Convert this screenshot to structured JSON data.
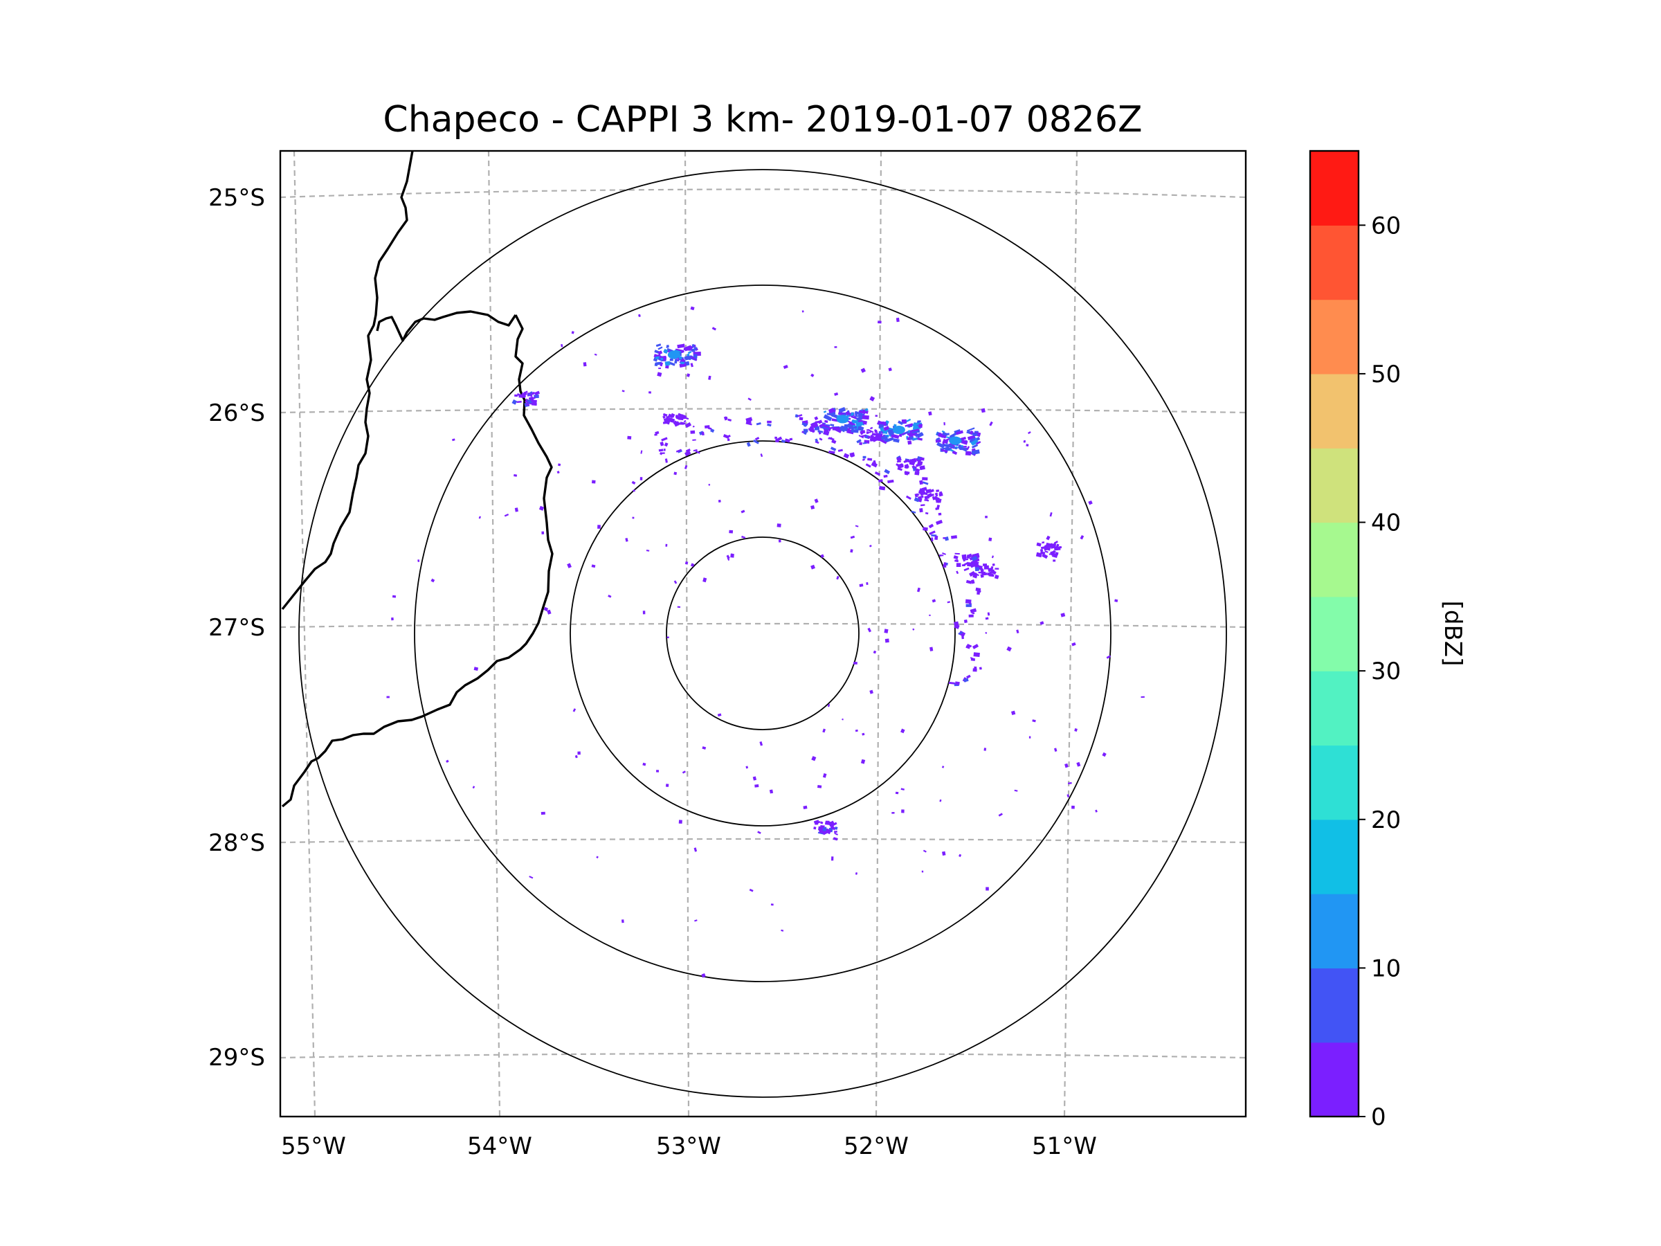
{
  "title": "Chapeco - CAPPI 3 km- 2019-01-07 0826Z",
  "map": {
    "lat_labels": [
      "25°S",
      "26°S",
      "27°S",
      "28°S",
      "29°S"
    ],
    "lon_labels": [
      "55°W",
      "54°W",
      "53°W",
      "52°W",
      "51°W"
    ],
    "lat_values": [
      -25,
      -26,
      -27,
      -28,
      -29
    ],
    "lon_values": [
      -55,
      -54,
      -53,
      -52,
      -51
    ],
    "extent": {
      "lon_min": -55.2,
      "lon_max": -50.05,
      "lat_min": -29.3,
      "lat_max": -24.8
    },
    "radar_center": {
      "lon": -52.6,
      "lat": -27.03
    },
    "range_rings": [
      "ring-1",
      "ring-2",
      "ring-3",
      "ring-4"
    ]
  },
  "colorbar": {
    "label": "[dBZ]",
    "tick_labels": [
      "0",
      "10",
      "20",
      "30",
      "40",
      "50",
      "60"
    ],
    "min": 0,
    "max": 65,
    "step": 5,
    "colors": [
      "#7b1fff",
      "#4254f5",
      "#2196f3",
      "#11bfe6",
      "#2ee0d5",
      "#52f2c2",
      "#83fcaa",
      "#a6f98f",
      "#cfe27c",
      "#f2c26e",
      "#ff8c4f",
      "#ff5533",
      "#ff1a14"
    ]
  },
  "chart_data": {
    "type": "radar-reflectivity-map",
    "title": "Chapeco - CAPPI 3 km- 2019-01-07 0826Z",
    "xlabel": "",
    "ylabel": "",
    "colorbar_label": "[dBZ]",
    "colorbar_range": [
      0,
      65
    ],
    "radar_site": {
      "lon": -52.6,
      "lat": -27.03
    },
    "echoes": [
      {
        "lon": -52.35,
        "lat": -26.08,
        "dbz": 8
      },
      {
        "lon": -52.2,
        "lat": -26.05,
        "dbz": 12
      },
      {
        "lon": -52.05,
        "lat": -26.12,
        "dbz": 6
      },
      {
        "lon": -51.9,
        "lat": -26.1,
        "dbz": 14
      },
      {
        "lon": -51.85,
        "lat": -26.25,
        "dbz": 6
      },
      {
        "lon": -51.75,
        "lat": -26.4,
        "dbz": 4
      },
      {
        "lon": -51.55,
        "lat": -26.7,
        "dbz": 6
      },
      {
        "lon": -51.45,
        "lat": -26.75,
        "dbz": 4
      },
      {
        "lon": -53.9,
        "lat": -25.95,
        "dbz": 6
      },
      {
        "lon": -53.1,
        "lat": -25.75,
        "dbz": 14
      },
      {
        "lon": -53.1,
        "lat": -26.05,
        "dbz": 4
      },
      {
        "lon": -52.3,
        "lat": -27.95,
        "dbz": 6
      },
      {
        "lon": -51.1,
        "lat": -26.65,
        "dbz": 4
      },
      {
        "lon": -51.6,
        "lat": -26.15,
        "dbz": 12
      }
    ]
  }
}
